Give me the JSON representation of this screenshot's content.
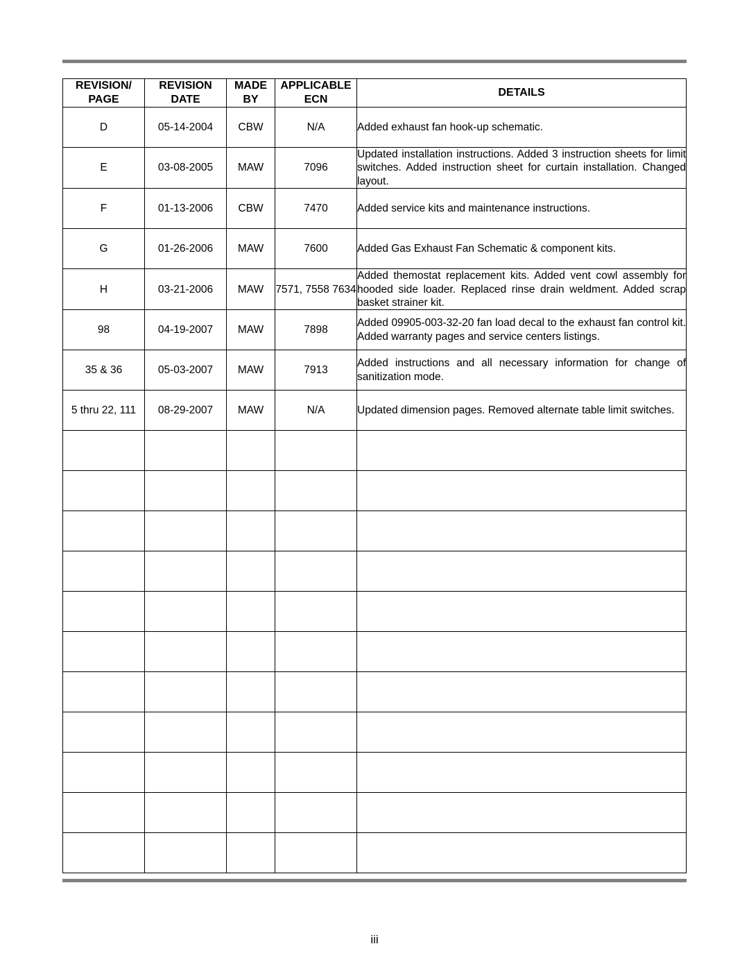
{
  "page_number": "iii",
  "colors": {
    "rule": "#808080",
    "border": "#000000",
    "background": "#ffffff",
    "text": "#000000"
  },
  "table": {
    "columns": [
      {
        "line1": "REVISION/",
        "line2": "PAGE"
      },
      {
        "line1": "REVISION",
        "line2": "DATE"
      },
      {
        "line1": "MADE",
        "line2": "BY"
      },
      {
        "line1": "APPLICABLE",
        "line2": "ECN"
      },
      {
        "line1": "DETAILS",
        "line2": ""
      }
    ],
    "rows": [
      {
        "rev": "D",
        "date": "05-14-2004",
        "by": "CBW",
        "ecn": "N/A",
        "details": "Added exhaust fan hook-up schematic."
      },
      {
        "rev": "E",
        "date": "03-08-2005",
        "by": "MAW",
        "ecn": "7096",
        "details": "Updated installation instructions. Added 3 instruction sheets for limit switches. Added instruction sheet for curtain installation. Changed layout."
      },
      {
        "rev": "F",
        "date": "01-13-2006",
        "by": "CBW",
        "ecn": "7470",
        "details": "Added service kits and maintenance instructions."
      },
      {
        "rev": "G",
        "date": "01-26-2006",
        "by": "MAW",
        "ecn": "7600",
        "details": "Added Gas Exhaust Fan Schematic & component kits."
      },
      {
        "rev": "H",
        "date": "03-21-2006",
        "by": "MAW",
        "ecn": "7571, 7558 7634",
        "details": "Added themostat replacement kits. Added vent cowl assembly for hooded side loader. Replaced rinse drain weldment. Added scrap basket strainer kit."
      },
      {
        "rev": "98",
        "date": "04-19-2007",
        "by": "MAW",
        "ecn": "7898",
        "details": "Added 09905-003-32-20 fan load decal to the exhaust fan control kit. Added warranty pages and service centers listings."
      },
      {
        "rev": "35 & 36",
        "date": "05-03-2007",
        "by": "MAW",
        "ecn": "7913",
        "details": "Added instructions and all necessary information for change of sanitization mode."
      },
      {
        "rev": "5 thru 22, 111",
        "date": "08-29-2007",
        "by": "MAW",
        "ecn": "N/A",
        "details": "Updated dimension pages. Removed alternate table limit switches."
      },
      {
        "rev": "",
        "date": "",
        "by": "",
        "ecn": "",
        "details": ""
      },
      {
        "rev": "",
        "date": "",
        "by": "",
        "ecn": "",
        "details": ""
      },
      {
        "rev": "",
        "date": "",
        "by": "",
        "ecn": "",
        "details": ""
      },
      {
        "rev": "",
        "date": "",
        "by": "",
        "ecn": "",
        "details": ""
      },
      {
        "rev": "",
        "date": "",
        "by": "",
        "ecn": "",
        "details": ""
      },
      {
        "rev": "",
        "date": "",
        "by": "",
        "ecn": "",
        "details": ""
      },
      {
        "rev": "",
        "date": "",
        "by": "",
        "ecn": "",
        "details": ""
      },
      {
        "rev": "",
        "date": "",
        "by": "",
        "ecn": "",
        "details": ""
      },
      {
        "rev": "",
        "date": "",
        "by": "",
        "ecn": "",
        "details": ""
      },
      {
        "rev": "",
        "date": "",
        "by": "",
        "ecn": "",
        "details": ""
      },
      {
        "rev": "",
        "date": "",
        "by": "",
        "ecn": "",
        "details": ""
      }
    ]
  }
}
